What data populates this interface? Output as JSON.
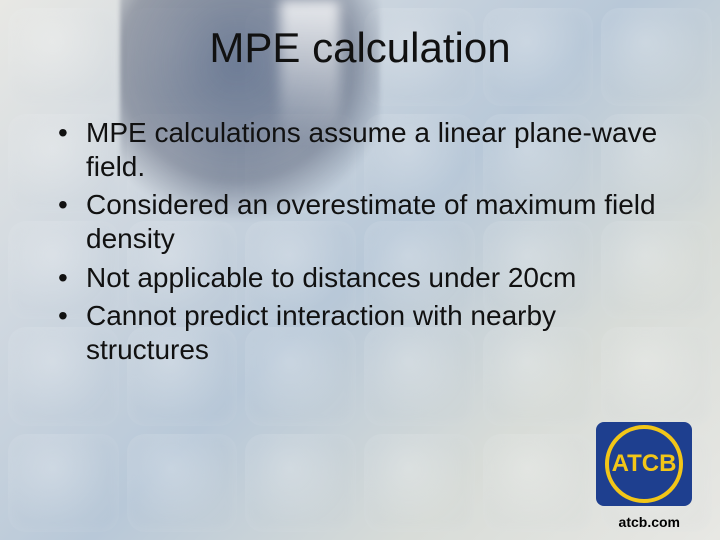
{
  "slide": {
    "title": "MPE calculation",
    "title_fontsize": 42,
    "body_fontsize": 28,
    "text_color": "#111111",
    "bullets": [
      "MPE calculations assume a linear plane-wave field.",
      "Considered an overestimate of maximum field density",
      "Not applicable to distances under 20cm",
      "Cannot predict interaction with nearby structures"
    ]
  },
  "logo": {
    "text": "ATCB",
    "bg_color": "#1e3f8f",
    "ring_color": "#f2c618",
    "ring_width": 4,
    "text_color": "#f2c618",
    "font_size": 24
  },
  "footer": {
    "text": "atcb.com",
    "color": "#000000",
    "font_size": 14
  },
  "background": {
    "grid_opacity": 0.35,
    "grid_cell_radius": 18
  }
}
